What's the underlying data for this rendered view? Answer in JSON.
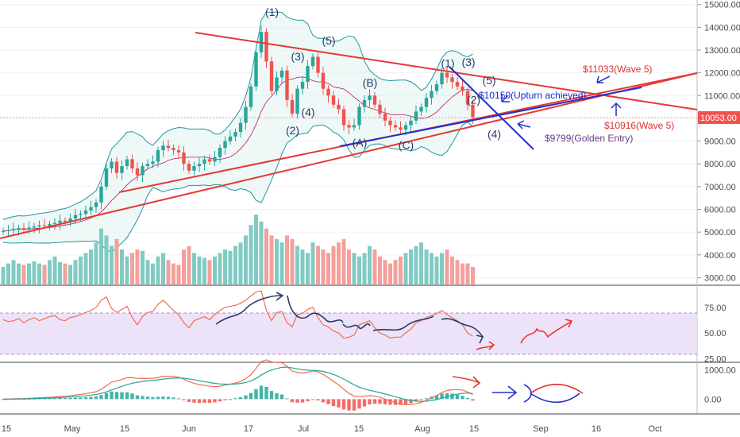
{
  "chart_data": [
    {
      "type": "candlestick",
      "panel": "price",
      "y_ticks": [
        "15000.00",
        "14000.00",
        "13000.00",
        "12000.00",
        "11000.00",
        "10000.00",
        "9000.00",
        "8000.00",
        "7000.00",
        "6000.00",
        "5000.00",
        "4000.00",
        "3000.00"
      ],
      "ylim": [
        2700,
        15200
      ],
      "last_price": "10053.00",
      "last_price_color": "#ef5350",
      "up_color": "#26a69a",
      "down_color": "#ef5350",
      "candles_close": [
        5050,
        5100,
        5150,
        5180,
        5120,
        5200,
        5250,
        5300,
        5280,
        5350,
        5400,
        5500,
        5450,
        5600,
        5750,
        5800,
        5950,
        6100,
        6300,
        7000,
        7800,
        8100,
        7600,
        7900,
        8200,
        7800,
        7500,
        7900,
        8000,
        8100,
        8600,
        8800,
        8700,
        8600,
        8500,
        8000,
        7700,
        7900,
        8000,
        8200,
        8100,
        8300,
        8700,
        9000,
        9200,
        9400,
        9800,
        10500,
        11400,
        12900,
        13800,
        12500,
        11200,
        11800,
        12100,
        10800,
        10200,
        11300,
        11600,
        12300,
        12700,
        12000,
        11300,
        11000,
        10600,
        10400,
        9700,
        9600,
        9700,
        10500,
        10800,
        11000,
        10600,
        10200,
        9900,
        9700,
        9600,
        9500,
        9700,
        9900,
        10300,
        10500,
        10900,
        11200,
        11500,
        12000,
        11800,
        11600,
        11400,
        11200,
        10600,
        10053
      ],
      "volume_rel": [
        0.25,
        0.3,
        0.35,
        0.3,
        0.28,
        0.3,
        0.33,
        0.3,
        0.28,
        0.35,
        0.4,
        0.32,
        0.3,
        0.28,
        0.35,
        0.4,
        0.45,
        0.5,
        0.6,
        0.8,
        0.7,
        0.55,
        0.65,
        0.5,
        0.4,
        0.45,
        0.5,
        0.48,
        0.35,
        0.3,
        0.4,
        0.45,
        0.35,
        0.3,
        0.28,
        0.5,
        0.55,
        0.45,
        0.4,
        0.38,
        0.35,
        0.4,
        0.45,
        0.5,
        0.48,
        0.55,
        0.6,
        0.7,
        0.85,
        1.0,
        0.9,
        0.8,
        0.7,
        0.65,
        0.6,
        0.7,
        0.65,
        0.55,
        0.5,
        0.45,
        0.6,
        0.55,
        0.5,
        0.45,
        0.55,
        0.6,
        0.65,
        0.5,
        0.45,
        0.4,
        0.45,
        0.55,
        0.5,
        0.4,
        0.35,
        0.3,
        0.35,
        0.4,
        0.45,
        0.5,
        0.55,
        0.6,
        0.5,
        0.45,
        0.4,
        0.45,
        0.5,
        0.4,
        0.35,
        0.3,
        0.3,
        0.25
      ],
      "wave_labels": [
        {
          "text": "(1)",
          "x_index": 49,
          "price": 14500
        },
        {
          "text": "(3)",
          "x_index": 54,
          "price": 12550
        },
        {
          "text": "(5)",
          "x_index": 60,
          "price": 13250
        },
        {
          "text": "(2)",
          "x_index": 53,
          "price": 9300
        },
        {
          "text": "(4)",
          "x_index": 56,
          "price": 10100
        },
        {
          "text": "(B)",
          "x_index": 68,
          "price": 11400
        },
        {
          "text": "(A)",
          "x_index": 66,
          "price": 8750
        },
        {
          "text": "(C)",
          "x_index": 75,
          "price": 8650
        },
        {
          "text": "(1)",
          "x_index": 80,
          "price": 12250
        },
        {
          "text": "(3)",
          "x_index": 84,
          "price": 12300
        },
        {
          "text": "(5)",
          "x_index": 88,
          "price": 11500
        },
        {
          "text": "(2)",
          "x_index": 85,
          "price": 10650
        },
        {
          "text": "(4)",
          "x_index": 89,
          "price": 9150
        }
      ],
      "annotations": [
        {
          "text": "$11033(Wave 5)",
          "color": "#e03030"
        },
        {
          "text": "$10150(Upturn achieved)",
          "color": "#1a2ad0"
        },
        {
          "text": "$10916(Wave 5)",
          "color": "#e03030"
        },
        {
          "text": "$9799(Golden Entry)",
          "color": "#6a3a8a"
        }
      ]
    },
    {
      "type": "line",
      "panel": "rsi",
      "y_ticks": [
        "75.00",
        "50.00",
        "25.00"
      ],
      "ylim": [
        23,
        95
      ],
      "band": [
        30,
        70
      ],
      "values": [
        63,
        61,
        62,
        64,
        60,
        63,
        65,
        62,
        64,
        66,
        67,
        63,
        62,
        65,
        66,
        68,
        70,
        72,
        75,
        82,
        85,
        74,
        70,
        73,
        76,
        65,
        58,
        66,
        70,
        71,
        78,
        82,
        77,
        72,
        68,
        60,
        55,
        62,
        64,
        66,
        63,
        68,
        72,
        75,
        76,
        77,
        79,
        82,
        86,
        90,
        91,
        72,
        62,
        70,
        71,
        60,
        56,
        68,
        69,
        73,
        75,
        65,
        58,
        56,
        52,
        50,
        45,
        46,
        48,
        58,
        60,
        62,
        55,
        50,
        48,
        45,
        46,
        46,
        50,
        54,
        60,
        62,
        65,
        67,
        69,
        72,
        68,
        65,
        62,
        58,
        50,
        47
      ],
      "line_color": "#f26c4f"
    },
    {
      "type": "bar",
      "panel": "macd",
      "y_ticks": [
        "1000.00",
        "0.00"
      ],
      "ylim": [
        -450,
        1200
      ],
      "macd_line_color": "#f26c4f",
      "signal_line_color": "#26a69a",
      "histogram_up": "#26a69a",
      "histogram_down": "#ef5350"
    }
  ],
  "x_labels": [
    "15",
    "May",
    "15",
    "Jun",
    "17",
    "Jul",
    "15",
    "Aug",
    "15",
    "Sep",
    "16",
    "Oct"
  ]
}
